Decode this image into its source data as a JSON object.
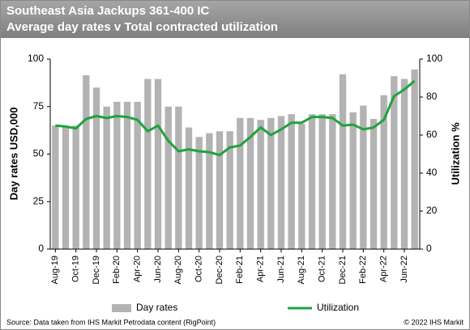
{
  "chart_data": {
    "type": "bar-line",
    "title": "Southeast Asia Jackups 361-400 IC",
    "subtitle": "Average day rates v  Total contracted utilization",
    "y_label": "Day rates USD,000",
    "y2_label": "Utilization %",
    "source": "Source:  Data taken  from IHS Markit Petrodata content (RigPoint)",
    "copyright": "© 2022  IHS Markit",
    "categories": [
      "Aug-19",
      null,
      "Oct-19",
      null,
      "Dec-19",
      null,
      "Feb-20",
      null,
      "Apr-20",
      null,
      "Jun-20",
      null,
      "Aug-20",
      null,
      "Oct-20",
      null,
      "Dec-20",
      null,
      "Feb-21",
      null,
      "Apr-21",
      null,
      "Jun-21",
      null,
      "Aug-21",
      null,
      "Oct-21",
      null,
      "Dec-21",
      null,
      "Feb-22",
      null,
      "Apr-22",
      null,
      "Jun-22",
      null
    ],
    "series": [
      {
        "name": "Day rates",
        "color": "#b3b3b3",
        "type": "bar",
        "values": [
          65,
          65,
          65,
          91.5,
          85,
          75,
          77.5,
          77.5,
          77.5,
          89.5,
          89.5,
          75,
          75,
          64,
          59,
          61,
          62,
          62,
          69,
          69,
          68,
          69,
          70,
          71,
          66,
          71,
          71,
          71,
          92,
          72,
          75.5,
          68.5,
          81,
          91,
          89.5,
          94.5
        ]
      },
      {
        "name": "Utilization",
        "color": "#1fa33b",
        "type": "line",
        "axis": "y2",
        "values": [
          65,
          64.5,
          63.5,
          68.5,
          70,
          69,
          70,
          69.5,
          68,
          62,
          65,
          57,
          51.5,
          52.5,
          51.5,
          51,
          49.5,
          53.5,
          54.5,
          59,
          64,
          60,
          63,
          66.5,
          66.5,
          69.5,
          69.5,
          69,
          65,
          65.5,
          63,
          64,
          68,
          80.5,
          84,
          88.5
        ]
      }
    ],
    "ylim": [
      0,
      100
    ],
    "yticks": [
      0,
      25,
      50,
      75,
      100
    ],
    "y2lim": [
      0,
      100
    ],
    "y2ticks": [
      0,
      20,
      40,
      60,
      80,
      100
    ],
    "grid": false
  }
}
